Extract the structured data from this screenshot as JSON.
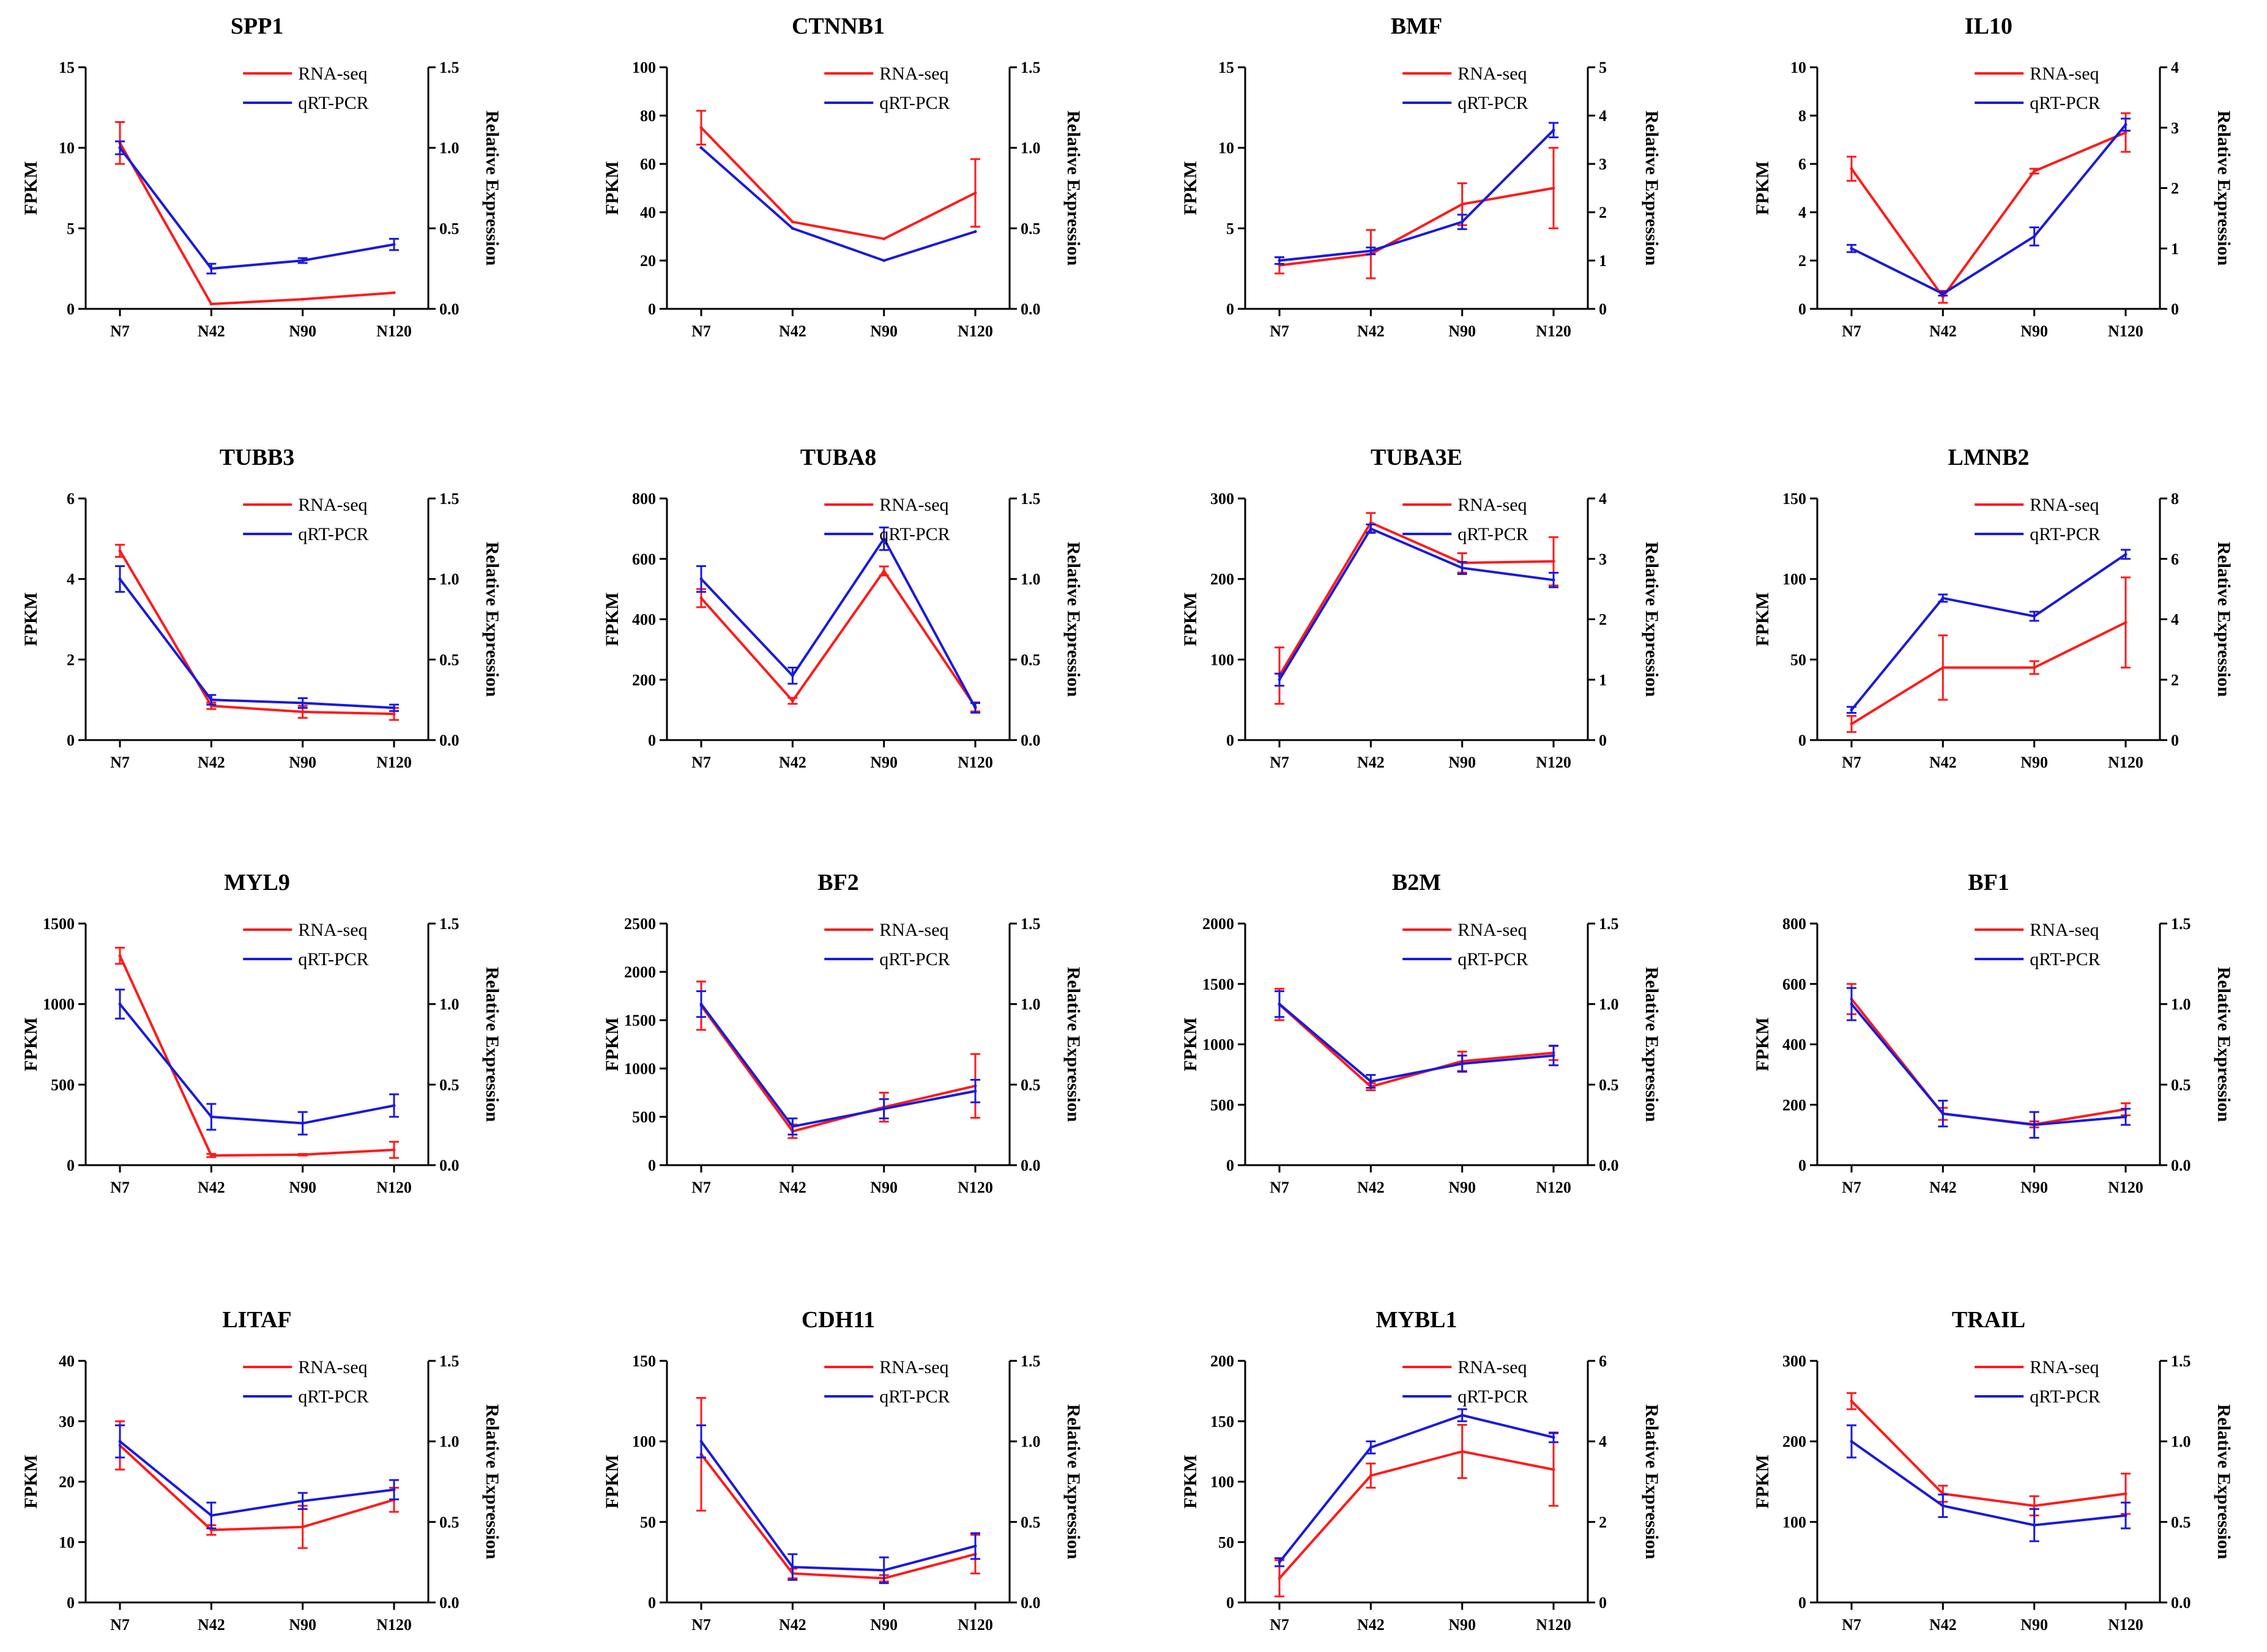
{
  "figure": {
    "x_label_text": "",
    "colors": {
      "rna": "#ff1a1a",
      "qrt": "#1a1adb",
      "axis": "#000000"
    }
  },
  "chart_data": [
    {
      "type": "line",
      "title": "SPP1",
      "categories": [
        "N7",
        "N42",
        "N90",
        "N120"
      ],
      "ylabel": "FPKM",
      "y2label": "Relative Expression",
      "ylim": [
        0,
        15
      ],
      "yticks": [
        "0",
        "5",
        "10",
        "15"
      ],
      "y2lim": [
        0,
        1.5
      ],
      "y2ticks": [
        "0.0",
        "0.5",
        "1.0",
        "1.5"
      ],
      "legend": "top-right",
      "series": [
        {
          "name": "RNA-seq",
          "axis": "left",
          "values": [
            10.3,
            0.3,
            0.6,
            1.0
          ],
          "errors": [
            1.3,
            0,
            0,
            0
          ]
        },
        {
          "name": "qRT-PCR",
          "axis": "right",
          "values": [
            1.0,
            0.25,
            0.3,
            0.4
          ],
          "errors": [
            0.04,
            0.03,
            0.015,
            0.035
          ]
        }
      ]
    },
    {
      "type": "line",
      "title": "CTNNB1",
      "categories": [
        "N7",
        "N42",
        "N90",
        "N120"
      ],
      "ylabel": "FPKM",
      "y2label": "Relative Expression",
      "ylim": [
        0,
        100
      ],
      "yticks": [
        "0",
        "20",
        "40",
        "60",
        "80",
        "100"
      ],
      "y2lim": [
        0,
        1.5
      ],
      "y2ticks": [
        "0.0",
        "0.5",
        "1.0",
        "1.5"
      ],
      "legend": "top-right",
      "series": [
        {
          "name": "RNA-seq",
          "axis": "left",
          "values": [
            75,
            36,
            29,
            48
          ],
          "errors": [
            7,
            0,
            0,
            14
          ]
        },
        {
          "name": "qRT-PCR",
          "axis": "right",
          "values": [
            1.0,
            0.5,
            0.3,
            0.48
          ],
          "errors": [
            0,
            0,
            0,
            0
          ]
        }
      ]
    },
    {
      "type": "line",
      "title": "BMF",
      "categories": [
        "N7",
        "N42",
        "N90",
        "N120"
      ],
      "ylabel": "FPKM",
      "y2label": "Relative Expression",
      "ylim": [
        0,
        15
      ],
      "yticks": [
        "0",
        "5",
        "10",
        "15"
      ],
      "y2lim": [
        0,
        5
      ],
      "y2ticks": [
        "0",
        "1",
        "2",
        "3",
        "4",
        "5"
      ],
      "legend": "top-right",
      "series": [
        {
          "name": "RNA-seq",
          "axis": "left",
          "values": [
            2.7,
            3.4,
            6.5,
            7.5
          ],
          "errors": [
            0.5,
            1.5,
            1.3,
            2.5
          ]
        },
        {
          "name": "qRT-PCR",
          "axis": "right",
          "values": [
            1.0,
            1.2,
            1.8,
            3.7
          ],
          "errors": [
            0.07,
            0.07,
            0.15,
            0.15
          ]
        }
      ]
    },
    {
      "type": "line",
      "title": "IL10",
      "categories": [
        "N7",
        "N42",
        "N90",
        "N120"
      ],
      "ylabel": "FPKM",
      "y2label": "Relative Expression",
      "ylim": [
        0,
        10
      ],
      "yticks": [
        "0",
        "2",
        "4",
        "6",
        "8",
        "10"
      ],
      "y2lim": [
        0,
        4
      ],
      "y2ticks": [
        "0",
        "1",
        "2",
        "3",
        "4"
      ],
      "legend": "top-right",
      "series": [
        {
          "name": "RNA-seq",
          "axis": "left",
          "values": [
            5.8,
            0.5,
            5.7,
            7.3
          ],
          "errors": [
            0.5,
            0.25,
            0.1,
            0.8
          ]
        },
        {
          "name": "qRT-PCR",
          "axis": "right",
          "values": [
            1.0,
            0.25,
            1.2,
            3.05
          ],
          "errors": [
            0.06,
            0.03,
            0.15,
            0.1
          ]
        }
      ]
    },
    {
      "type": "line",
      "title": "TUBB3",
      "categories": [
        "N7",
        "N42",
        "N90",
        "N120"
      ],
      "ylabel": "FPKM",
      "y2label": "Relative Expression",
      "ylim": [
        0,
        6
      ],
      "yticks": [
        "0",
        "2",
        "4",
        "6"
      ],
      "y2lim": [
        0,
        1.5
      ],
      "y2ticks": [
        "0.0",
        "0.5",
        "1.0",
        "1.5"
      ],
      "legend": "top-right",
      "series": [
        {
          "name": "RNA-seq",
          "axis": "left",
          "values": [
            4.7,
            0.85,
            0.7,
            0.65
          ],
          "errors": [
            0.15,
            0.08,
            0.15,
            0.15
          ]
        },
        {
          "name": "qRT-PCR",
          "axis": "right",
          "values": [
            1.0,
            0.25,
            0.23,
            0.2
          ],
          "errors": [
            0.08,
            0.03,
            0.03,
            0.02
          ]
        }
      ]
    },
    {
      "type": "line",
      "title": "TUBA8",
      "categories": [
        "N7",
        "N42",
        "N90",
        "N120"
      ],
      "ylabel": "FPKM",
      "y2label": "Relative Expression",
      "ylim": [
        0,
        800
      ],
      "yticks": [
        "0",
        "200",
        "400",
        "600",
        "800"
      ],
      "y2lim": [
        0,
        1.5
      ],
      "y2ticks": [
        "0.0",
        "0.5",
        "1.0",
        "1.5"
      ],
      "legend": "top-right",
      "series": [
        {
          "name": "RNA-seq",
          "axis": "left",
          "values": [
            470,
            130,
            560,
            110
          ],
          "errors": [
            30,
            10,
            15,
            15
          ]
        },
        {
          "name": "qRT-PCR",
          "axis": "right",
          "values": [
            1.0,
            0.4,
            1.25,
            0.2
          ],
          "errors": [
            0.08,
            0.05,
            0.07,
            0.03
          ]
        }
      ]
    },
    {
      "type": "line",
      "title": "TUBA3E",
      "categories": [
        "N7",
        "N42",
        "N90",
        "N120"
      ],
      "ylabel": "FPKM",
      "y2label": "Relative Expression",
      "ylim": [
        0,
        300
      ],
      "yticks": [
        "0",
        "100",
        "200",
        "300"
      ],
      "y2lim": [
        0,
        4
      ],
      "y2ticks": [
        "0",
        "1",
        "2",
        "3",
        "4"
      ],
      "legend": "top-right",
      "series": [
        {
          "name": "RNA-seq",
          "axis": "left",
          "values": [
            80,
            270,
            220,
            222
          ],
          "errors": [
            35,
            12,
            12,
            30
          ]
        },
        {
          "name": "qRT-PCR",
          "axis": "right",
          "values": [
            1.0,
            3.5,
            2.85,
            2.65
          ],
          "errors": [
            0.1,
            0.07,
            0.1,
            0.12
          ]
        }
      ]
    },
    {
      "type": "line",
      "title": "LMNB2",
      "categories": [
        "N7",
        "N42",
        "N90",
        "N120"
      ],
      "ylabel": "FPKM",
      "y2label": "Relative Expression",
      "ylim": [
        0,
        150
      ],
      "yticks": [
        "0",
        "50",
        "100",
        "150"
      ],
      "y2lim": [
        0,
        8
      ],
      "y2ticks": [
        "0",
        "2",
        "4",
        "6",
        "8"
      ],
      "legend": "top-right",
      "series": [
        {
          "name": "RNA-seq",
          "axis": "left",
          "values": [
            10,
            45,
            45,
            73
          ],
          "errors": [
            5,
            20,
            4,
            28
          ]
        },
        {
          "name": "qRT-PCR",
          "axis": "right",
          "values": [
            1.0,
            4.7,
            4.1,
            6.15
          ],
          "errors": [
            0.1,
            0.12,
            0.15,
            0.15
          ]
        }
      ]
    },
    {
      "type": "line",
      "title": "MYL9",
      "categories": [
        "N7",
        "N42",
        "N90",
        "N120"
      ],
      "ylabel": "FPKM",
      "y2label": "Relative Expression",
      "ylim": [
        0,
        1500
      ],
      "yticks": [
        "0",
        "500",
        "1000",
        "1500"
      ],
      "y2lim": [
        0,
        1.5
      ],
      "y2ticks": [
        "0.0",
        "0.5",
        "1.0",
        "1.5"
      ],
      "legend": "top-right",
      "series": [
        {
          "name": "RNA-seq",
          "axis": "left",
          "values": [
            1300,
            60,
            65,
            95
          ],
          "errors": [
            50,
            10,
            5,
            50
          ]
        },
        {
          "name": "qRT-PCR",
          "axis": "right",
          "values": [
            1.0,
            0.3,
            0.26,
            0.37
          ],
          "errors": [
            0.09,
            0.08,
            0.07,
            0.07
          ]
        }
      ]
    },
    {
      "type": "line",
      "title": "BF2",
      "categories": [
        "N7",
        "N42",
        "N90",
        "N120"
      ],
      "ylabel": "FPKM",
      "y2label": "Relative Expression",
      "ylim": [
        0,
        2500
      ],
      "yticks": [
        "0",
        "500",
        "1000",
        "1500",
        "2000",
        "2500"
      ],
      "y2lim": [
        0,
        1.5
      ],
      "y2ticks": [
        "0.0",
        "0.5",
        "1.0",
        "1.5"
      ],
      "legend": "top-right",
      "series": [
        {
          "name": "RNA-seq",
          "axis": "left",
          "values": [
            1650,
            350,
            600,
            820
          ],
          "errors": [
            250,
            70,
            150,
            330
          ]
        },
        {
          "name": "qRT-PCR",
          "axis": "right",
          "values": [
            1.0,
            0.24,
            0.35,
            0.46
          ],
          "errors": [
            0.08,
            0.05,
            0.06,
            0.07
          ]
        }
      ]
    },
    {
      "type": "line",
      "title": "B2M",
      "categories": [
        "N7",
        "N42",
        "N90",
        "N120"
      ],
      "ylabel": "FPKM",
      "y2label": "Relative Expression",
      "ylim": [
        0,
        2000
      ],
      "yticks": [
        "0",
        "500",
        "1000",
        "1500",
        "2000"
      ],
      "y2lim": [
        0,
        1.5
      ],
      "y2ticks": [
        "0.0",
        "0.5",
        "1.0",
        "1.5"
      ],
      "legend": "top-right",
      "series": [
        {
          "name": "RNA-seq",
          "axis": "left",
          "values": [
            1330,
            650,
            860,
            930
          ],
          "errors": [
            130,
            30,
            80,
            60
          ]
        },
        {
          "name": "qRT-PCR",
          "axis": "right",
          "values": [
            1.0,
            0.52,
            0.63,
            0.68
          ],
          "errors": [
            0.08,
            0.04,
            0.05,
            0.06
          ]
        }
      ]
    },
    {
      "type": "line",
      "title": "BF1",
      "categories": [
        "N7",
        "N42",
        "N90",
        "N120"
      ],
      "ylabel": "FPKM",
      "y2label": "Relative Expression",
      "ylim": [
        0,
        800
      ],
      "yticks": [
        "0",
        "200",
        "400",
        "600",
        "800"
      ],
      "y2lim": [
        0,
        1.5
      ],
      "y2ticks": [
        "0.0",
        "0.5",
        "1.0",
        "1.5"
      ],
      "legend": "top-right",
      "series": [
        {
          "name": "RNA-seq",
          "axis": "left",
          "values": [
            550,
            170,
            135,
            185
          ],
          "errors": [
            50,
            20,
            10,
            20
          ]
        },
        {
          "name": "qRT-PCR",
          "axis": "right",
          "values": [
            1.0,
            0.32,
            0.25,
            0.3
          ],
          "errors": [
            0.1,
            0.08,
            0.08,
            0.05
          ]
        }
      ]
    },
    {
      "type": "line",
      "title": "LITAF",
      "categories": [
        "N7",
        "N42",
        "N90",
        "N120"
      ],
      "ylabel": "FPKM",
      "y2label": "Relative Expression",
      "ylim": [
        0,
        40
      ],
      "yticks": [
        "0",
        "10",
        "20",
        "30",
        "40"
      ],
      "y2lim": [
        0,
        1.5
      ],
      "y2ticks": [
        "0.0",
        "0.5",
        "1.0",
        "1.5"
      ],
      "legend": "top-right",
      "series": [
        {
          "name": "RNA-seq",
          "axis": "left",
          "values": [
            26,
            12,
            12.5,
            17
          ],
          "errors": [
            4,
            0.8,
            3.5,
            2
          ]
        },
        {
          "name": "qRT-PCR",
          "axis": "right",
          "values": [
            1.0,
            0.54,
            0.63,
            0.7
          ],
          "errors": [
            0.1,
            0.08,
            0.05,
            0.06
          ]
        }
      ]
    },
    {
      "type": "line",
      "title": "CDH11",
      "categories": [
        "N7",
        "N42",
        "N90",
        "N120"
      ],
      "ylabel": "FPKM",
      "y2label": "Relative Expression",
      "ylim": [
        0,
        150
      ],
      "yticks": [
        "0",
        "50",
        "100",
        "150"
      ],
      "y2lim": [
        0,
        1.5
      ],
      "y2ticks": [
        "0.0",
        "0.5",
        "1.0",
        "1.5"
      ],
      "legend": "top-right",
      "series": [
        {
          "name": "RNA-seq",
          "axis": "left",
          "values": [
            92,
            18,
            15,
            30
          ],
          "errors": [
            35,
            3,
            2,
            12
          ]
        },
        {
          "name": "qRT-PCR",
          "axis": "right",
          "values": [
            1.0,
            0.22,
            0.2,
            0.35
          ],
          "errors": [
            0.1,
            0.08,
            0.08,
            0.08
          ]
        }
      ]
    },
    {
      "type": "line",
      "title": "MYBL1",
      "categories": [
        "N7",
        "N42",
        "N90",
        "N120"
      ],
      "ylabel": "FPKM",
      "y2label": "Relative Expression",
      "ylim": [
        0,
        200
      ],
      "yticks": [
        "0",
        "50",
        "100",
        "150",
        "200"
      ],
      "y2lim": [
        0,
        6
      ],
      "y2ticks": [
        "0",
        "2",
        "4",
        "6"
      ],
      "legend": "top-right",
      "series": [
        {
          "name": "RNA-seq",
          "axis": "left",
          "values": [
            20,
            105,
            125,
            110
          ],
          "errors": [
            15,
            10,
            22,
            30
          ]
        },
        {
          "name": "qRT-PCR",
          "axis": "right",
          "values": [
            1.0,
            3.85,
            4.65,
            4.1
          ],
          "errors": [
            0.1,
            0.15,
            0.15,
            0.12
          ]
        }
      ]
    },
    {
      "type": "line",
      "title": "TRAIL",
      "categories": [
        "N7",
        "N42",
        "N90",
        "N120"
      ],
      "ylabel": "FPKM",
      "y2label": "Relative Expression",
      "ylim": [
        0,
        300
      ],
      "yticks": [
        "0",
        "100",
        "200",
        "300"
      ],
      "y2lim": [
        0,
        1.5
      ],
      "y2ticks": [
        "0.0",
        "0.5",
        "1.0",
        "1.5"
      ],
      "legend": "top-right",
      "series": [
        {
          "name": "RNA-seq",
          "axis": "left",
          "values": [
            250,
            135,
            120,
            135
          ],
          "errors": [
            10,
            10,
            12,
            25
          ]
        },
        {
          "name": "qRT-PCR",
          "axis": "right",
          "values": [
            1.0,
            0.6,
            0.48,
            0.54
          ],
          "errors": [
            0.1,
            0.07,
            0.1,
            0.08
          ]
        }
      ]
    }
  ]
}
